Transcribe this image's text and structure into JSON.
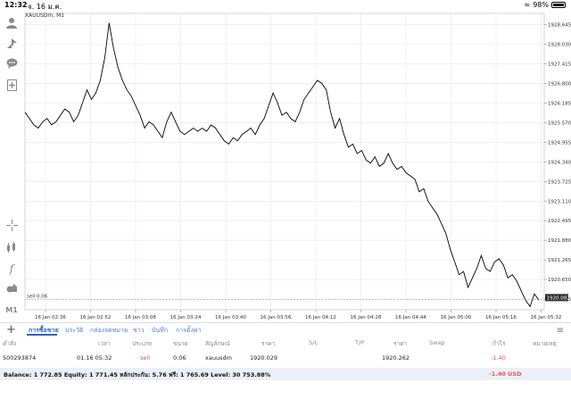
{
  "statusbar": {
    "time": "12:32",
    "date": "จ. 16 ม.ค.",
    "battery": "98%"
  },
  "chart": {
    "symbol": "XAUUSDm, M1",
    "sell_line_label": "sell 0.06",
    "current_price": "1920.082",
    "line_color": "#000000",
    "grid_color": "#e6e6e6",
    "y_ticks": [
      "1928.645",
      "1928.030",
      "1927.415",
      "1926.800",
      "1926.185",
      "1925.570",
      "1924.955",
      "1924.340",
      "1923.725",
      "1923.110",
      "1922.495",
      "1921.880",
      "1921.265",
      "1920.650",
      "1920.035"
    ],
    "x_ticks": [
      "16 Jan 02:36",
      "16 Jan 02:52",
      "16 Jan 03:08",
      "16 Jan 03:24",
      "16 Jan 03:40",
      "16 Jan 03:56",
      "16 Jan 04:12",
      "16 Jan 04:28",
      "16 Jan 04:44",
      "16 Jan 05:00",
      "16 Jan 05:16",
      "16 Jan 05:32"
    ]
  },
  "chart_data": {
    "type": "line",
    "title": "XAUUSDm, M1",
    "xlabel": "",
    "ylabel": "",
    "ylim": [
      1919.7,
      1929.0
    ],
    "grid": true,
    "series": [
      {
        "values": [
          1925.9,
          1925.7,
          1925.5,
          1925.4,
          1925.6,
          1925.7,
          1925.5,
          1925.6,
          1925.8,
          1926.0,
          1925.9,
          1925.6,
          1925.8,
          1926.2,
          1926.6,
          1926.3,
          1926.5,
          1926.9,
          1927.6,
          1928.7,
          1927.9,
          1927.3,
          1926.9,
          1926.6,
          1926.4,
          1926.1,
          1925.8,
          1925.4,
          1925.6,
          1925.5,
          1925.3,
          1925.1,
          1925.6,
          1925.9,
          1925.6,
          1925.3,
          1925.2,
          1925.3,
          1925.4,
          1925.3,
          1925.4,
          1925.3,
          1925.5,
          1925.4,
          1925.2,
          1925.0,
          1924.9,
          1925.1,
          1925.0,
          1925.2,
          1925.3,
          1925.4,
          1925.2,
          1925.5,
          1925.7,
          1926.1,
          1926.5,
          1926.2,
          1925.8,
          1925.9,
          1925.7,
          1925.6,
          1925.9,
          1926.3,
          1926.5,
          1926.7,
          1926.9,
          1926.8,
          1926.6,
          1925.9,
          1925.4,
          1925.7,
          1925.2,
          1924.8,
          1924.9,
          1924.6,
          1924.7,
          1924.4,
          1924.3,
          1924.5,
          1924.2,
          1924.3,
          1924.6,
          1924.3,
          1924.1,
          1924.2,
          1924.0,
          1923.9,
          1923.8,
          1923.4,
          1923.5,
          1923.1,
          1922.9,
          1922.7,
          1922.4,
          1922.1,
          1921.6,
          1921.2,
          1920.8,
          1920.9,
          1920.4,
          1920.7,
          1921.0,
          1921.4,
          1921.0,
          1920.9,
          1921.2,
          1921.3,
          1921.1,
          1920.7,
          1920.8,
          1920.6,
          1920.3,
          1920.0,
          1919.8,
          1920.2,
          1920.0
        ]
      }
    ]
  },
  "sidebar": {
    "icons": [
      "user-icon",
      "signal-icon",
      "chat-icon",
      "add-document-icon",
      "crosshair-icon",
      "indicators-icon",
      "function-icon",
      "objects-icon"
    ],
    "timeframe": "M1"
  },
  "tabs": {
    "items": [
      "การซื้อขาย",
      "ประวัติ",
      "กล่องจดหมาย",
      "ข่าว",
      "บันทึก",
      "การตั้งค่า"
    ]
  },
  "table": {
    "headers": [
      "คำสั่ง",
      "เวลา",
      "ประเภท",
      "ขนาด",
      "สัญลักษณ์",
      "ราคา",
      "S/L",
      "T/P",
      "ราคา",
      "Swap",
      "กำไร",
      "หมายเหตุ"
    ],
    "row": {
      "ticket": "500293874",
      "time": "01.16 05:32",
      "type": "sell",
      "volume": "0.06",
      "symbol": "xauusdm",
      "open_price": "1920.029",
      "sl": "",
      "tp": "",
      "price": "1920.262",
      "swap": "",
      "profit": "-1.40",
      "comment": ""
    }
  },
  "footer": {
    "balance_line": "Balance: 1 772.85 Equity: 1 771.45 หลักประกัน: 5.76 ฟรี: 1 765.69 Level: 30 753.88%",
    "total_profit": "-1.40  USD"
  }
}
